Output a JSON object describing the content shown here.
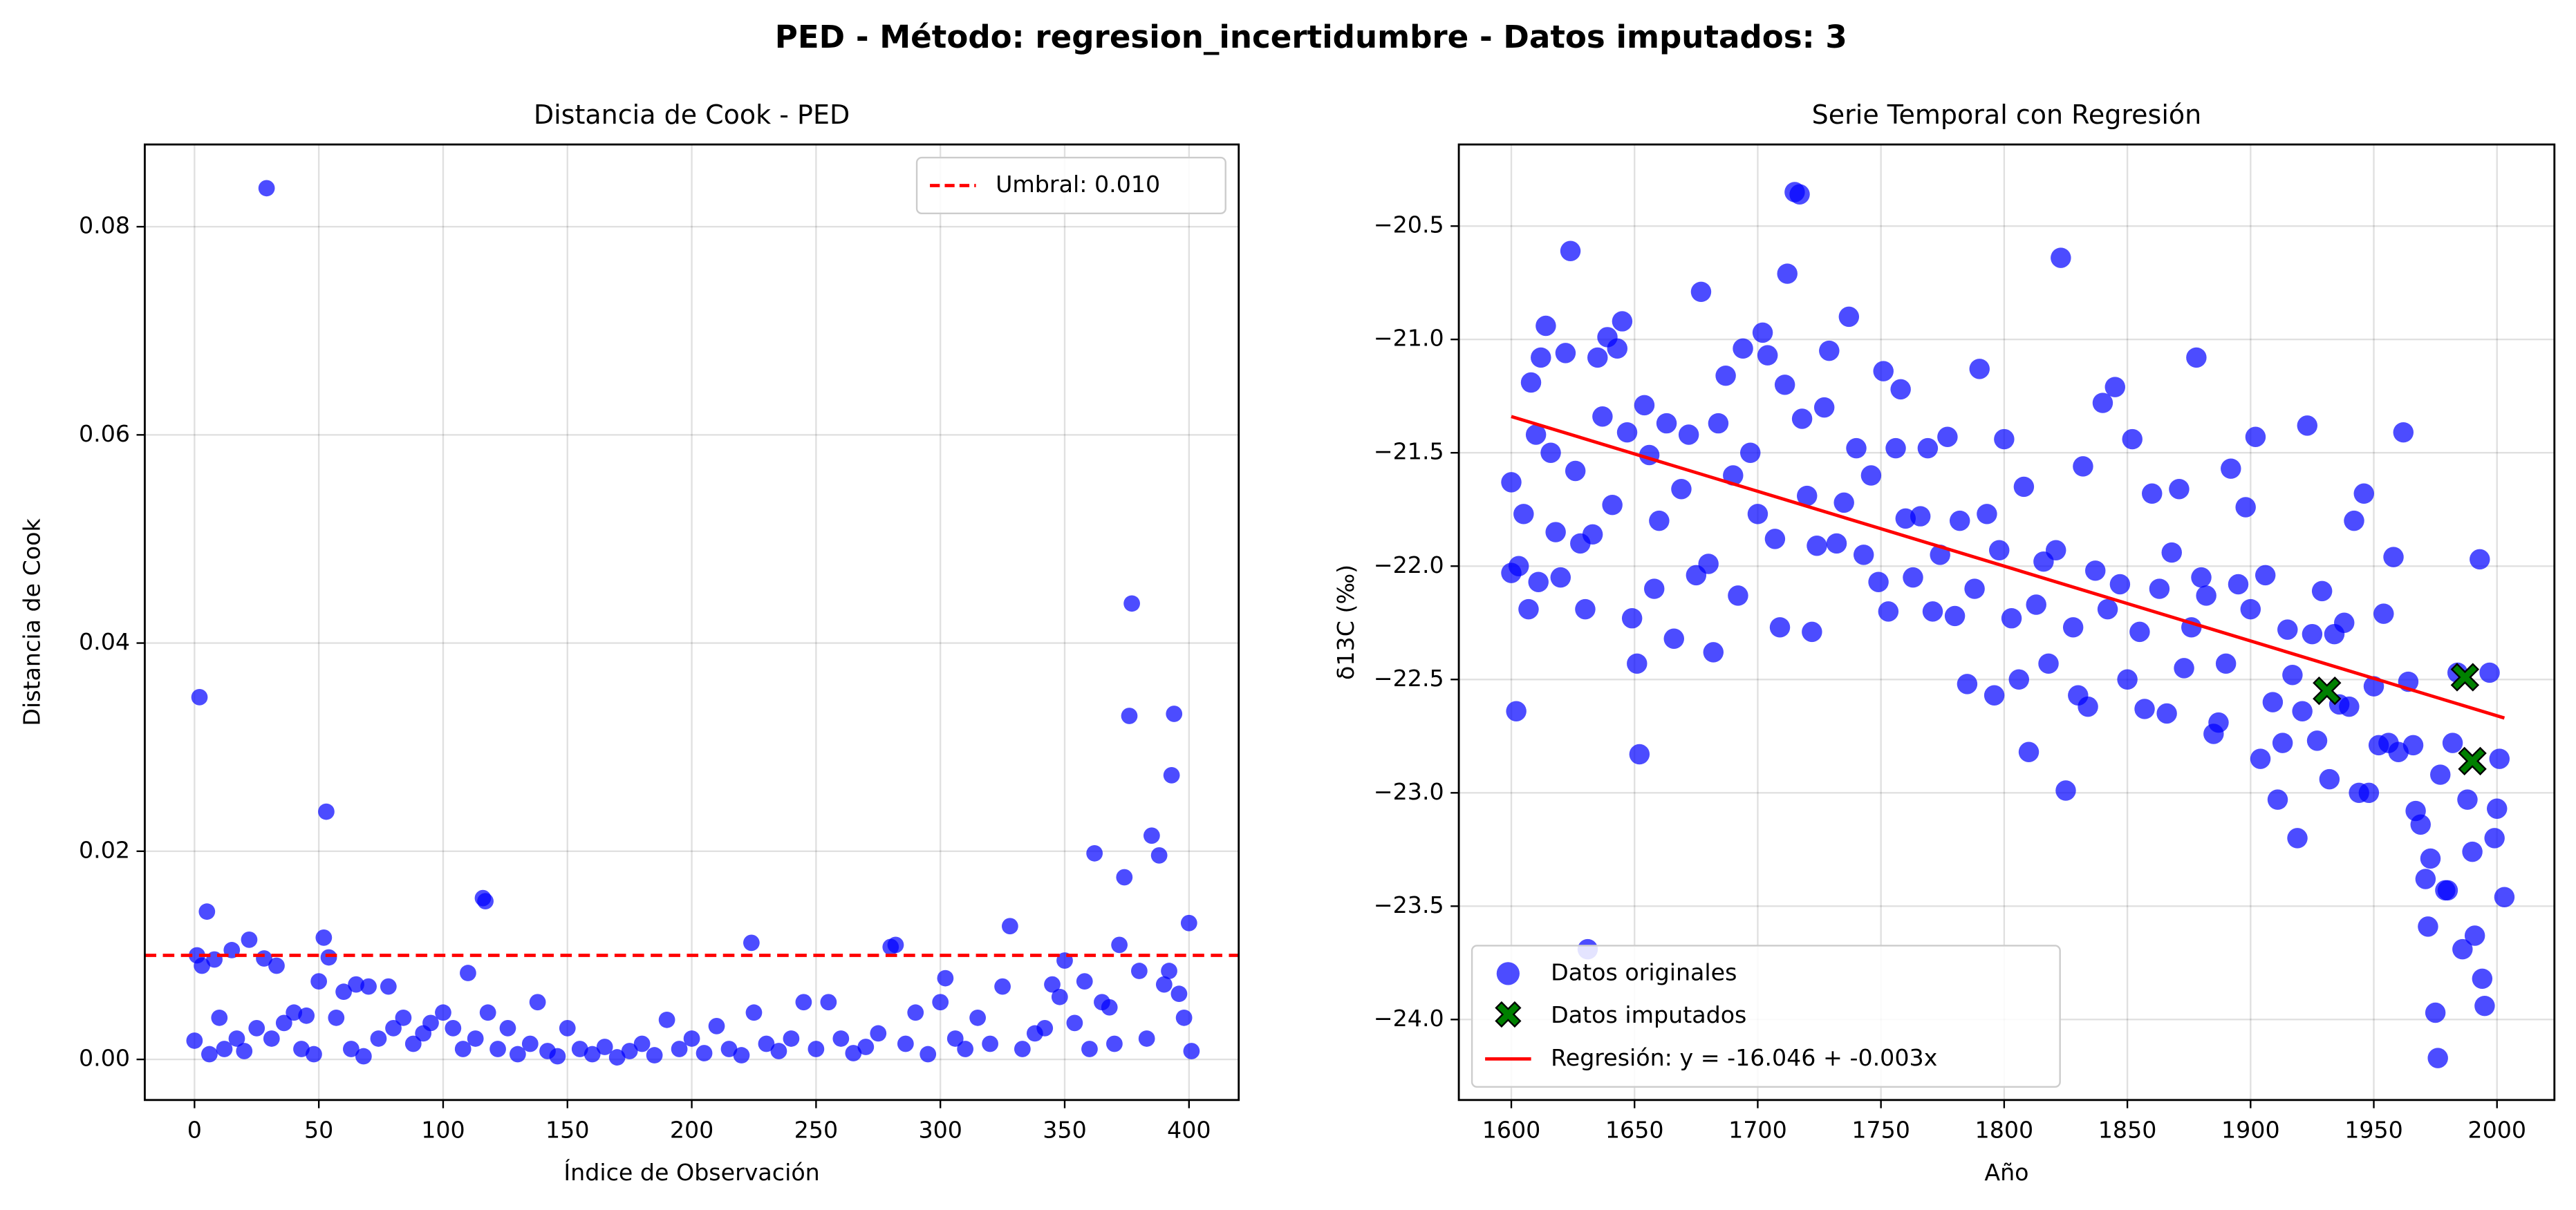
{
  "title": "PED  - Método: regresion_incertidumbre - Datos imputados: 3",
  "chart_data": [
    {
      "type": "scatter",
      "title": "Distancia de Cook - PED",
      "xlabel": "Índice de Observación",
      "ylabel": "Distancia de Cook",
      "xlim": [
        -20,
        420
      ],
      "ylim": [
        -0.0039,
        0.0879
      ],
      "xticks": [
        0,
        50,
        100,
        150,
        200,
        250,
        300,
        350,
        400
      ],
      "yticks": [
        {
          "value": 0,
          "label": "0.00"
        },
        {
          "value": 0.02,
          "label": "0.02"
        },
        {
          "value": 0.04,
          "label": "0.04"
        },
        {
          "value": 0.06,
          "label": "0.06"
        },
        {
          "value": 0.08,
          "label": "0.08"
        }
      ],
      "grid": true,
      "legend": "upper right",
      "threshold": {
        "value": 0.01,
        "label": "Umbral: 0.010",
        "color": "#ff0000"
      },
      "series": [
        {
          "color": "#0000ff",
          "x": [
            0,
            1,
            2,
            3,
            5,
            6,
            8,
            10,
            12,
            15,
            17,
            20,
            22,
            25,
            28,
            29,
            31,
            33,
            36,
            40,
            43,
            45,
            48,
            50,
            52,
            53,
            54,
            57,
            60,
            63,
            65,
            68,
            70,
            74,
            78,
            80,
            84,
            88,
            92,
            95,
            100,
            104,
            108,
            110,
            113,
            116,
            117,
            118,
            122,
            126,
            130,
            135,
            138,
            142,
            146,
            150,
            155,
            160,
            165,
            170,
            175,
            180,
            185,
            190,
            195,
            200,
            205,
            210,
            215,
            220,
            224,
            225,
            230,
            235,
            240,
            245,
            250,
            255,
            260,
            265,
            270,
            275,
            280,
            282,
            286,
            290,
            295,
            300,
            302,
            306,
            310,
            315,
            320,
            325,
            328,
            333,
            338,
            342,
            345,
            348,
            350,
            354,
            358,
            360,
            362,
            365,
            368,
            370,
            372,
            374,
            376,
            377,
            380,
            383,
            385,
            388,
            390,
            392,
            393,
            394,
            396,
            398,
            400,
            401
          ],
          "values": [
            0.0018,
            0.01,
            0.0348,
            0.009,
            0.0142,
            0.0005,
            0.0096,
            0.004,
            0.001,
            0.0105,
            0.002,
            0.0008,
            0.0115,
            0.003,
            0.0097,
            0.0837,
            0.002,
            0.009,
            0.0035,
            0.0045,
            0.001,
            0.0042,
            0.0005,
            0.0075,
            0.0117,
            0.0238,
            0.0098,
            0.004,
            0.0065,
            0.001,
            0.0072,
            0.0003,
            0.007,
            0.002,
            0.007,
            0.003,
            0.004,
            0.0015,
            0.0025,
            0.0035,
            0.0045,
            0.003,
            0.001,
            0.0083,
            0.002,
            0.0155,
            0.0152,
            0.0045,
            0.001,
            0.003,
            0.0005,
            0.0015,
            0.0055,
            0.0008,
            0.0003,
            0.003,
            0.001,
            0.0005,
            0.0012,
            0.0002,
            0.0008,
            0.0015,
            0.0004,
            0.0038,
            0.001,
            0.002,
            0.0006,
            0.0032,
            0.001,
            0.0004,
            0.0112,
            0.0045,
            0.0015,
            0.0008,
            0.002,
            0.0055,
            0.001,
            0.0055,
            0.002,
            0.0006,
            0.0012,
            0.0025,
            0.0108,
            0.011,
            0.0015,
            0.0045,
            0.0005,
            0.0055,
            0.0078,
            0.002,
            0.001,
            0.004,
            0.0015,
            0.007,
            0.0128,
            0.001,
            0.0025,
            0.003,
            0.0072,
            0.006,
            0.0095,
            0.0035,
            0.0075,
            0.001,
            0.0198,
            0.0055,
            0.005,
            0.0015,
            0.011,
            0.0175,
            0.033,
            0.0438,
            0.0085,
            0.002,
            0.0215,
            0.0196,
            0.0072,
            0.0085,
            0.0273,
            0.0332,
            0.0063,
            0.004,
            0.0131,
            0.0008
          ]
        }
      ]
    },
    {
      "type": "scatter",
      "title": "Serie Temporal con Regresión",
      "xlabel": "Año",
      "ylabel": "δ13C (‰)",
      "xlim": [
        1578.7,
        2023.3
      ],
      "ylim": [
        -24.355,
        -20.14
      ],
      "xticks": [
        1600,
        1650,
        1700,
        1750,
        1800,
        1850,
        1900,
        1950,
        2000
      ],
      "yticks": [
        {
          "value": -24,
          "label": "−24.0"
        },
        {
          "value": -23.5,
          "label": "−23.5"
        },
        {
          "value": -23,
          "label": "−23.0"
        },
        {
          "value": -22.5,
          "label": "−22.5"
        },
        {
          "value": -22,
          "label": "−22.0"
        },
        {
          "value": -21.5,
          "label": "−21.5"
        },
        {
          "value": -21,
          "label": "−21.0"
        },
        {
          "value": -20.5,
          "label": "−20.5"
        }
      ],
      "grid": true,
      "legend": "lower left",
      "series": [
        {
          "name": "Datos originales",
          "color": "#0000ff",
          "x": [
            1600,
            1600,
            1602,
            1603,
            1605,
            1607,
            1608,
            1610,
            1611,
            1612,
            1614,
            1616,
            1618,
            1620,
            1622,
            1624,
            1626,
            1628,
            1630,
            1631,
            1633,
            1635,
            1637,
            1639,
            1641,
            1643,
            1645,
            1647,
            1649,
            1651,
            1652,
            1654,
            1656,
            1658,
            1660,
            1663,
            1666,
            1669,
            1672,
            1675,
            1677,
            1680,
            1682,
            1684,
            1687,
            1690,
            1692,
            1694,
            1697,
            1700,
            1702,
            1704,
            1707,
            1709,
            1711,
            1712,
            1715,
            1717,
            1718,
            1720,
            1722,
            1724,
            1727,
            1729,
            1732,
            1735,
            1737,
            1740,
            1743,
            1746,
            1749,
            1751,
            1753,
            1756,
            1758,
            1760,
            1763,
            1766,
            1769,
            1771,
            1774,
            1777,
            1780,
            1782,
            1785,
            1788,
            1790,
            1793,
            1796,
            1798,
            1800,
            1803,
            1806,
            1808,
            1810,
            1813,
            1816,
            1818,
            1821,
            1823,
            1825,
            1828,
            1830,
            1832,
            1834,
            1837,
            1840,
            1842,
            1845,
            1847,
            1850,
            1852,
            1855,
            1857,
            1860,
            1863,
            1866,
            1868,
            1871,
            1873,
            1876,
            1878,
            1880,
            1882,
            1885,
            1887,
            1890,
            1892,
            1895,
            1898,
            1900,
            1902,
            1904,
            1906,
            1909,
            1911,
            1913,
            1915,
            1917,
            1919,
            1921,
            1923,
            1925,
            1927,
            1929,
            1932,
            1934,
            1936,
            1938,
            1940,
            1942,
            1944,
            1946,
            1948,
            1950,
            1952,
            1954,
            1956,
            1958,
            1960,
            1962,
            1964,
            1966,
            1967,
            1969,
            1971,
            1972,
            1973,
            1975,
            1976,
            1977,
            1979,
            1980,
            1982,
            1984,
            1986,
            1988,
            1990,
            1991,
            1993,
            1994,
            1995,
            1997,
            1999,
            2000,
            2001,
            2003
          ],
          "values": [
            -21.63,
            -22.03,
            -22.64,
            -22.0,
            -21.77,
            -22.19,
            -21.19,
            -21.42,
            -22.07,
            -21.08,
            -20.94,
            -21.5,
            -21.85,
            -22.05,
            -21.06,
            -20.61,
            -21.58,
            -21.9,
            -22.19,
            -23.69,
            -21.86,
            -21.08,
            -21.34,
            -20.99,
            -21.73,
            -21.04,
            -20.92,
            -21.41,
            -22.23,
            -22.43,
            -22.83,
            -21.29,
            -21.51,
            -22.1,
            -21.8,
            -21.37,
            -22.32,
            -21.66,
            -21.42,
            -22.04,
            -20.79,
            -21.99,
            -22.38,
            -21.37,
            -21.16,
            -21.6,
            -22.13,
            -21.04,
            -21.5,
            -21.77,
            -20.97,
            -21.07,
            -21.88,
            -22.27,
            -21.2,
            -20.71,
            -20.35,
            -20.36,
            -21.35,
            -21.69,
            -22.29,
            -21.91,
            -21.3,
            -21.05,
            -21.9,
            -21.72,
            -20.9,
            -21.48,
            -21.95,
            -21.6,
            -22.07,
            -21.14,
            -22.2,
            -21.48,
            -21.22,
            -21.79,
            -22.05,
            -21.78,
            -21.48,
            -22.2,
            -21.95,
            -21.43,
            -22.22,
            -21.8,
            -22.52,
            -22.1,
            -21.13,
            -21.77,
            -22.57,
            -21.93,
            -21.44,
            -22.23,
            -22.5,
            -21.65,
            -22.82,
            -22.17,
            -21.98,
            -22.43,
            -21.93,
            -20.64,
            -22.99,
            -22.27,
            -22.57,
            -21.56,
            -22.62,
            -22.02,
            -21.28,
            -22.19,
            -21.21,
            -22.08,
            -22.5,
            -21.44,
            -22.29,
            -22.63,
            -21.68,
            -22.1,
            -22.65,
            -21.94,
            -21.66,
            -22.45,
            -22.27,
            -21.08,
            -22.05,
            -22.13,
            -22.74,
            -22.69,
            -22.43,
            -21.57,
            -22.08,
            -21.74,
            -22.19,
            -21.43,
            -22.85,
            -22.04,
            -22.6,
            -23.03,
            -22.78,
            -22.28,
            -22.48,
            -23.2,
            -22.64,
            -21.38,
            -22.3,
            -22.77,
            -22.11,
            -22.94,
            -22.3,
            -22.61,
            -22.25,
            -22.62,
            -21.8,
            -23.0,
            -21.68,
            -23.0,
            -22.53,
            -22.79,
            -22.21,
            -22.78,
            -21.96,
            -22.82,
            -21.41,
            -22.51,
            -22.79,
            -23.08,
            -23.14,
            -23.38,
            -23.59,
            -23.29,
            -23.97,
            -24.17,
            -22.92,
            -23.43,
            -23.43,
            -22.78,
            -22.47,
            -23.69,
            -23.03,
            -23.26,
            -23.63,
            -21.97,
            -23.82,
            -23.94,
            -22.47,
            -23.2,
            -23.07,
            -22.85,
            -23.46
          ]
        },
        {
          "name": "Datos imputados",
          "color": "#008000",
          "marker": "X",
          "x": [
            1931,
            1987,
            1990
          ],
          "values": [
            -22.55,
            -22.49,
            -22.86
          ]
        },
        {
          "name": "Regresión: y = -16.046 + -0.003x",
          "color": "#ff0000",
          "type": "line",
          "x": [
            1600,
            2003
          ],
          "values": [
            -21.34,
            -22.67
          ]
        }
      ]
    }
  ]
}
